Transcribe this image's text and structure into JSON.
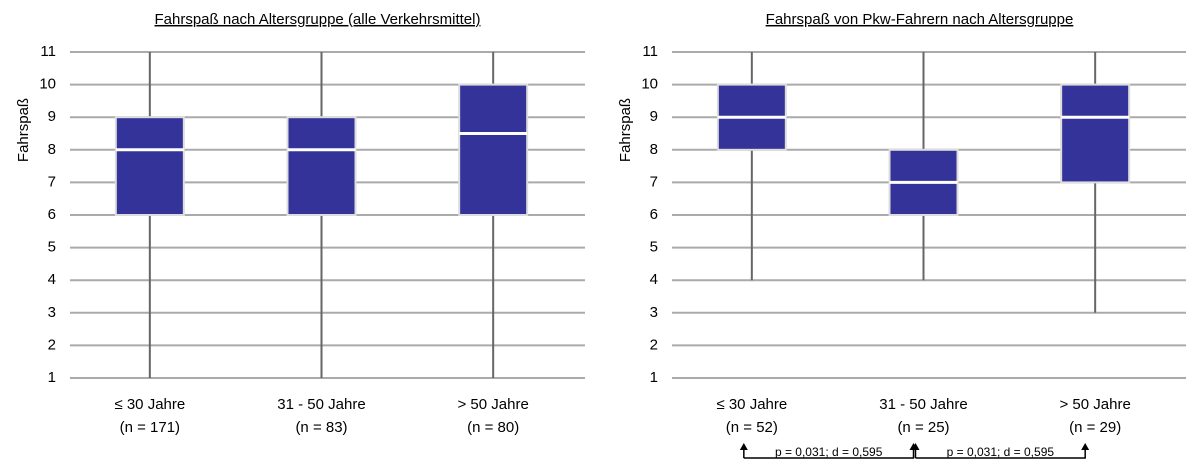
{
  "chart_data": [
    {
      "type": "box",
      "title": "Fahrspaß nach Altersgruppe (alle Verkehrsmittel)",
      "ylabel": "Fahrspaß",
      "categories": [
        "≤ 30 Jahre",
        "31 - 50 Jahre",
        "> 50 Jahre"
      ],
      "category_notes": [
        "(n = 171)",
        "(n = 83)",
        "(n = 80)"
      ],
      "boxes": [
        {
          "min": 1,
          "q1": 6,
          "median": 8,
          "q3": 9,
          "max": 11
        },
        {
          "min": 1,
          "q1": 6,
          "median": 8,
          "q3": 9,
          "max": 11
        },
        {
          "min": 1,
          "q1": 6,
          "median": 8.5,
          "q3": 10,
          "max": 11
        }
      ],
      "color": "#333399",
      "ylim": [
        1,
        11
      ],
      "yticks": [
        1,
        2,
        3,
        4,
        5,
        6,
        7,
        8,
        9,
        10,
        11
      ],
      "grid": true
    },
    {
      "type": "box",
      "title": "Fahrspaß von Pkw-Fahrern nach Altersgruppe",
      "ylabel": "Fahrspaß",
      "categories": [
        "≤ 30 Jahre",
        "31 - 50 Jahre",
        "> 50 Jahre"
      ],
      "category_notes": [
        "(n = 52)",
        "(n = 25)",
        "(n = 29)"
      ],
      "boxes": [
        {
          "min": 4,
          "q1": 8,
          "median": 9,
          "q3": 10,
          "max": 11
        },
        {
          "min": 4,
          "q1": 6,
          "median": 7,
          "q3": 8,
          "max": 11
        },
        {
          "min": 3,
          "q1": 7,
          "median": 9,
          "q3": 10,
          "max": 11
        }
      ],
      "color": "#333399",
      "ylim": [
        1,
        11
      ],
      "yticks": [
        1,
        2,
        3,
        4,
        5,
        6,
        7,
        8,
        9,
        10,
        11
      ],
      "grid": true,
      "annotations": [
        "p = 0,031; d = 0,595",
        "p = 0,031; d = 0,595"
      ]
    }
  ]
}
